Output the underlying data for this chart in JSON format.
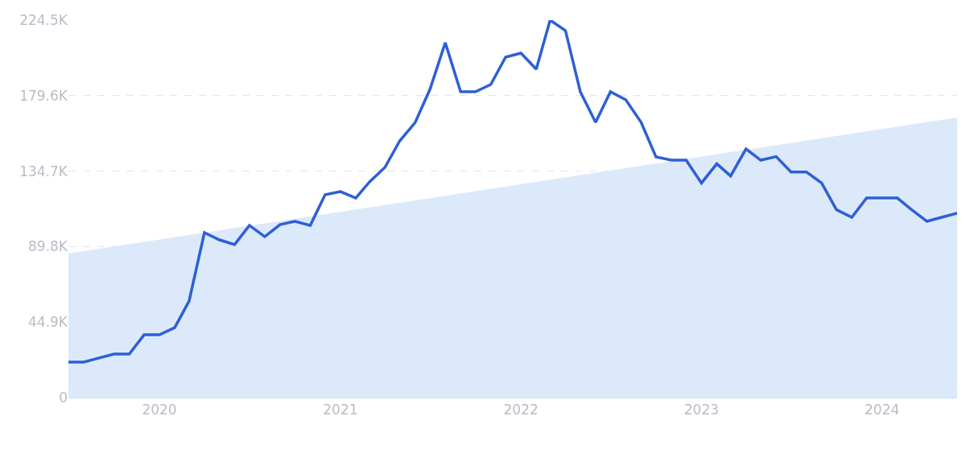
{
  "chart_data": {
    "type": "line",
    "x": [
      "2019-07",
      "2019-08",
      "2019-09",
      "2019-10",
      "2019-11",
      "2019-12",
      "2020-01",
      "2020-02",
      "2020-03",
      "2020-04",
      "2020-05",
      "2020-06",
      "2020-07",
      "2020-08",
      "2020-09",
      "2020-10",
      "2020-11",
      "2020-12",
      "2021-01",
      "2021-02",
      "2021-03",
      "2021-04",
      "2021-05",
      "2021-06",
      "2021-07",
      "2021-08",
      "2021-09",
      "2021-10",
      "2021-11",
      "2021-12",
      "2022-01",
      "2022-02",
      "2022-03",
      "2022-04",
      "2022-05",
      "2022-06",
      "2022-07",
      "2022-08",
      "2022-09",
      "2022-10",
      "2022-11",
      "2022-12",
      "2023-01",
      "2023-02",
      "2023-03",
      "2023-04",
      "2023-05",
      "2023-06",
      "2023-07",
      "2023-08",
      "2023-09",
      "2023-10",
      "2023-11",
      "2023-12",
      "2024-01",
      "2024-02",
      "2024-03",
      "2024-04",
      "2024-05",
      "2024-06"
    ],
    "series": [
      {
        "type": "area",
        "color": "#dce9fb",
        "x": [
          "2019-07",
          "2024-06"
        ],
        "values": [
          85700,
          166600
        ]
      },
      {
        "color": "#2e5fd4",
        "values": [
          21100,
          21100,
          23500,
          25800,
          25800,
          37300,
          37300,
          41600,
          57400,
          98100,
          93800,
          91000,
          102400,
          95700,
          102900,
          104800,
          102400,
          120600,
          122500,
          118700,
          128300,
          136900,
          152700,
          163500,
          183300,
          211100,
          181900,
          181900,
          186200,
          202500,
          204900,
          195300,
          224500,
          218300,
          181900,
          163700,
          181900,
          177100,
          163700,
          143100,
          141200,
          141200,
          127600,
          139000,
          131800,
          147900,
          141200,
          143300,
          134200,
          134200,
          127600,
          111700,
          107200,
          118700,
          118700,
          118700,
          111700,
          104800,
          107200,
          109600
        ]
      }
    ],
    "xlim": [
      "2019-07",
      "2024-06"
    ],
    "xticks": [
      {
        "value": "2020-01",
        "label": "2020"
      },
      {
        "value": "2021-01",
        "label": "2021"
      },
      {
        "value": "2022-01",
        "label": "2022"
      },
      {
        "value": "2023-01",
        "label": "2023"
      },
      {
        "value": "2024-01",
        "label": "2024"
      }
    ],
    "ylim": [
      0,
      224500
    ],
    "yticks": [
      0,
      {
        "value": 44900,
        "label": "44.9K"
      },
      {
        "value": 89800,
        "label": "89.8K"
      },
      {
        "value": 134700,
        "label": "134.7K"
      },
      {
        "value": 179600,
        "label": "179.6K"
      },
      {
        "value": 224500,
        "label": "224.5K"
      }
    ],
    "grid": "y",
    "line_style": "solid",
    "marker": "none"
  }
}
